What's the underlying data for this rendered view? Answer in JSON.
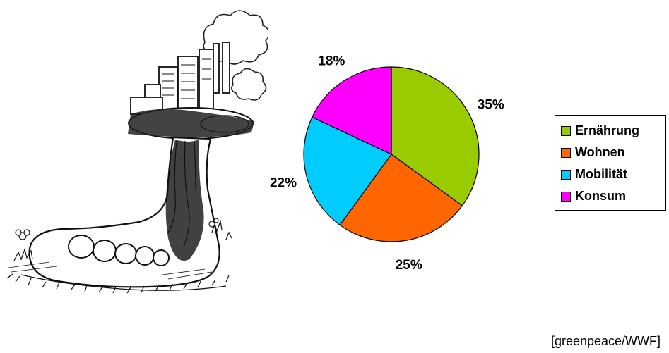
{
  "chart_data": {
    "type": "pie",
    "title": "",
    "categories": [
      "Ernährung",
      "Wohnen",
      "Mobilität",
      "Konsum"
    ],
    "values": [
      35,
      25,
      22,
      18
    ],
    "labels": [
      "35%",
      "25%",
      "22%",
      "18%"
    ],
    "colors": [
      "#99cc00",
      "#ff6600",
      "#00ccff",
      "#ff00ff"
    ],
    "legend_position": "right",
    "start": "top",
    "direction": "clockwise"
  },
  "source": "[greenpeace/WWF]",
  "illustration_icon": "giant-foot-with-city-icon"
}
